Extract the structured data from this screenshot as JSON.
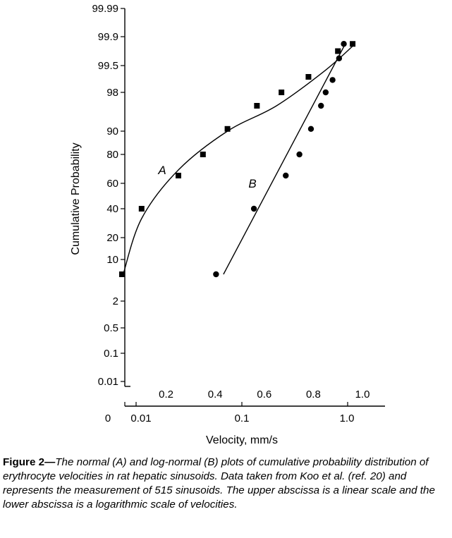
{
  "chart_data": {
    "type": "scatter",
    "title": "",
    "ylabel": "Cumulative Probability",
    "xlabel": "Velocity, mm/s",
    "y_scale": "probability",
    "y_ticks": [
      "99.99",
      "99.9",
      "99.5",
      "98",
      "90",
      "80",
      "60",
      "40",
      "20",
      "10",
      "2",
      "0.5",
      "0.1",
      "0.01"
    ],
    "x_log_ticks": [
      "0",
      "0.01",
      "0.1",
      "1.0"
    ],
    "x_linear_ticks": [
      "0.2",
      "0.4",
      "0.6",
      "0.8",
      "1.0"
    ],
    "x_log_range": [
      0.007,
      2.5
    ],
    "x_linear_range": [
      0.0,
      1.1
    ],
    "grid": false,
    "series": [
      {
        "name": "A",
        "marker": "square",
        "scale": "linear",
        "points": [
          {
            "x": 0.02,
            "y": 5
          },
          {
            "x": 0.1,
            "y": 40
          },
          {
            "x": 0.25,
            "y": 65
          },
          {
            "x": 0.35,
            "y": 80
          },
          {
            "x": 0.45,
            "y": 91
          },
          {
            "x": 0.57,
            "y": 97
          },
          {
            "x": 0.67,
            "y": 98
          },
          {
            "x": 0.78,
            "y": 99
          },
          {
            "x": 0.9,
            "y": 99.7
          },
          {
            "x": 0.96,
            "y": 99.8
          }
        ],
        "fit": [
          {
            "x": 0.025,
            "y": 5
          },
          {
            "x": 0.1,
            "y": 35
          },
          {
            "x": 0.25,
            "y": 70
          },
          {
            "x": 0.45,
            "y": 90
          },
          {
            "x": 0.65,
            "y": 97
          },
          {
            "x": 0.85,
            "y": 99.3
          },
          {
            "x": 0.97,
            "y": 99.8
          }
        ]
      },
      {
        "name": "B",
        "marker": "circle",
        "scale": "log",
        "points": [
          {
            "x": 0.057,
            "y": 5
          },
          {
            "x": 0.13,
            "y": 40
          },
          {
            "x": 0.26,
            "y": 65
          },
          {
            "x": 0.35,
            "y": 80
          },
          {
            "x": 0.45,
            "y": 91
          },
          {
            "x": 0.56,
            "y": 97
          },
          {
            "x": 0.62,
            "y": 98
          },
          {
            "x": 0.72,
            "y": 98.8
          },
          {
            "x": 0.83,
            "y": 99.6
          },
          {
            "x": 0.92,
            "y": 99.8
          }
        ],
        "fit": [
          {
            "x": 0.067,
            "y": 5
          },
          {
            "x": 0.95,
            "y": 99.8
          }
        ]
      }
    ]
  },
  "caption": {
    "label": "Figure 2—",
    "text": "The normal (A) and log-normal (B) plots of cumulative probability distribution of erythrocyte velocities in rat hepatic sinusoids. Data taken from Koo et al. (ref. 20) and represents the measurement of 515 sinusoids. The upper abscissa is a linear scale and the lower abscissa is a logarithmic scale of velocities."
  }
}
